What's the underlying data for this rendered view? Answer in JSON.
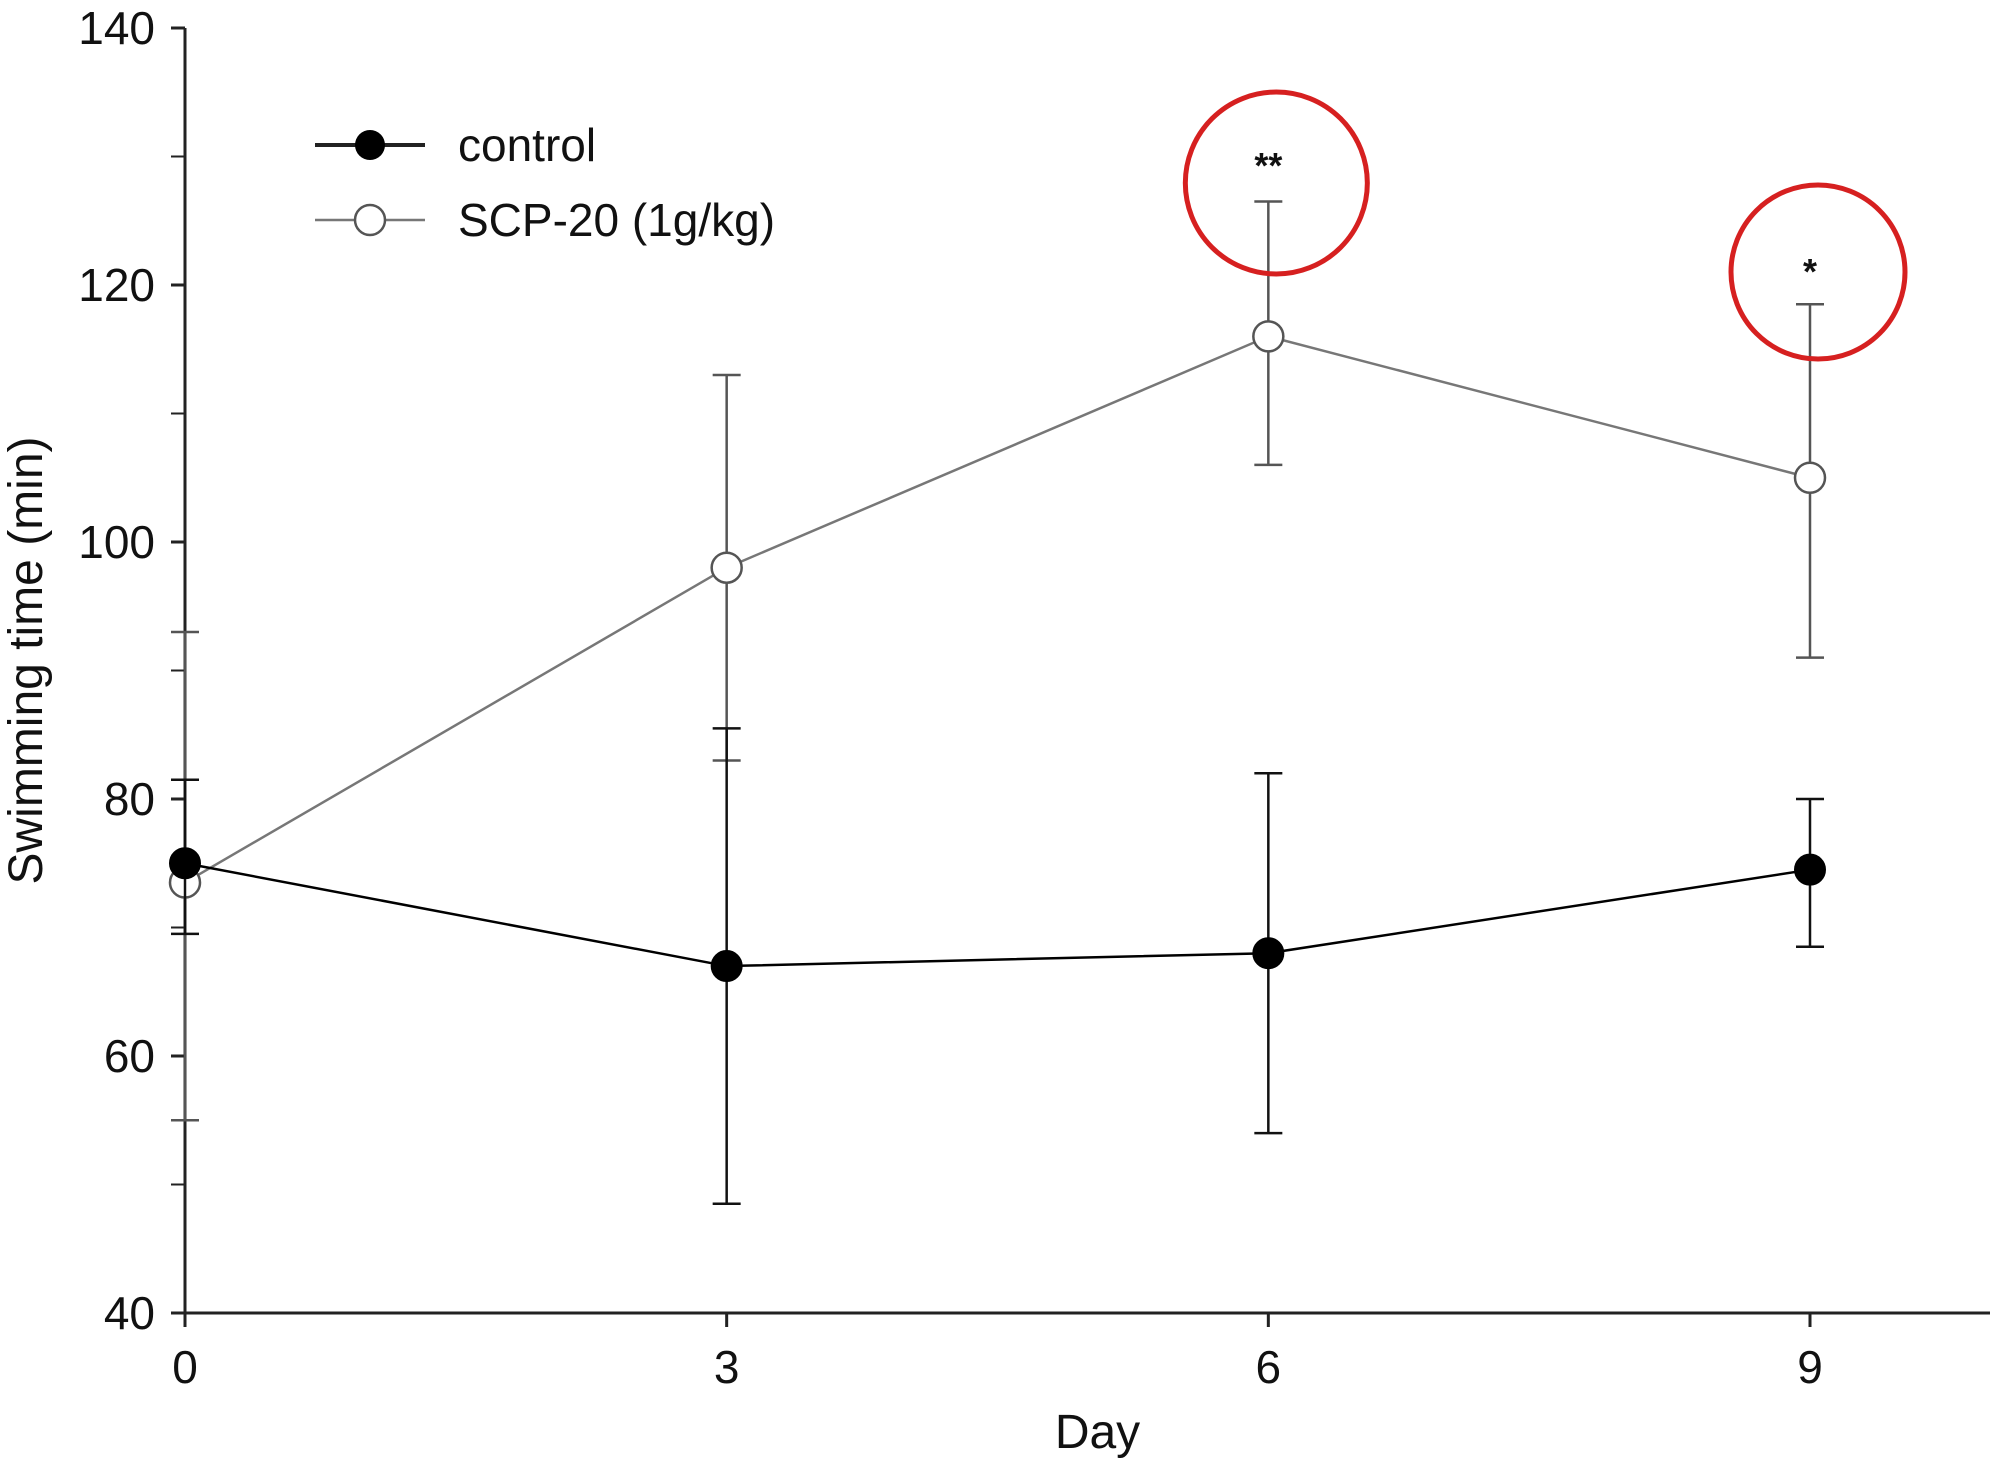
{
  "chart_data": {
    "type": "line",
    "xlabel": "Day",
    "ylabel": "Swimming time (min)",
    "x": [
      0,
      3,
      6,
      9
    ],
    "xticks": [
      "0",
      "3",
      "6",
      "9"
    ],
    "yticks": [
      "40",
      "60",
      "80",
      "100",
      "120",
      "140"
    ],
    "xlim": [
      0,
      10
    ],
    "ylim": [
      40,
      140
    ],
    "grid": false,
    "legend_placement": "top-left",
    "series": [
      {
        "name": "control",
        "marker": "filled-circle",
        "color": "#000000",
        "y": [
          75,
          67,
          68,
          74.5
        ],
        "err_low": [
          69.5,
          48.5,
          54,
          68.5
        ],
        "err_high": [
          81.5,
          85.5,
          82,
          80
        ]
      },
      {
        "name": "SCP-20 (1g/kg)",
        "marker": "open-circle",
        "color": "#777777",
        "y": [
          73.5,
          98,
          116,
          105
        ],
        "err_low": [
          55,
          83,
          106,
          91
        ],
        "err_high": [
          93,
          113,
          126.5,
          118.5
        ]
      }
    ],
    "annotations": [
      {
        "text": "**",
        "x": 6,
        "highlight_color": "#d62020"
      },
      {
        "text": "*",
        "x": 9,
        "highlight_color": "#d62020"
      }
    ]
  }
}
